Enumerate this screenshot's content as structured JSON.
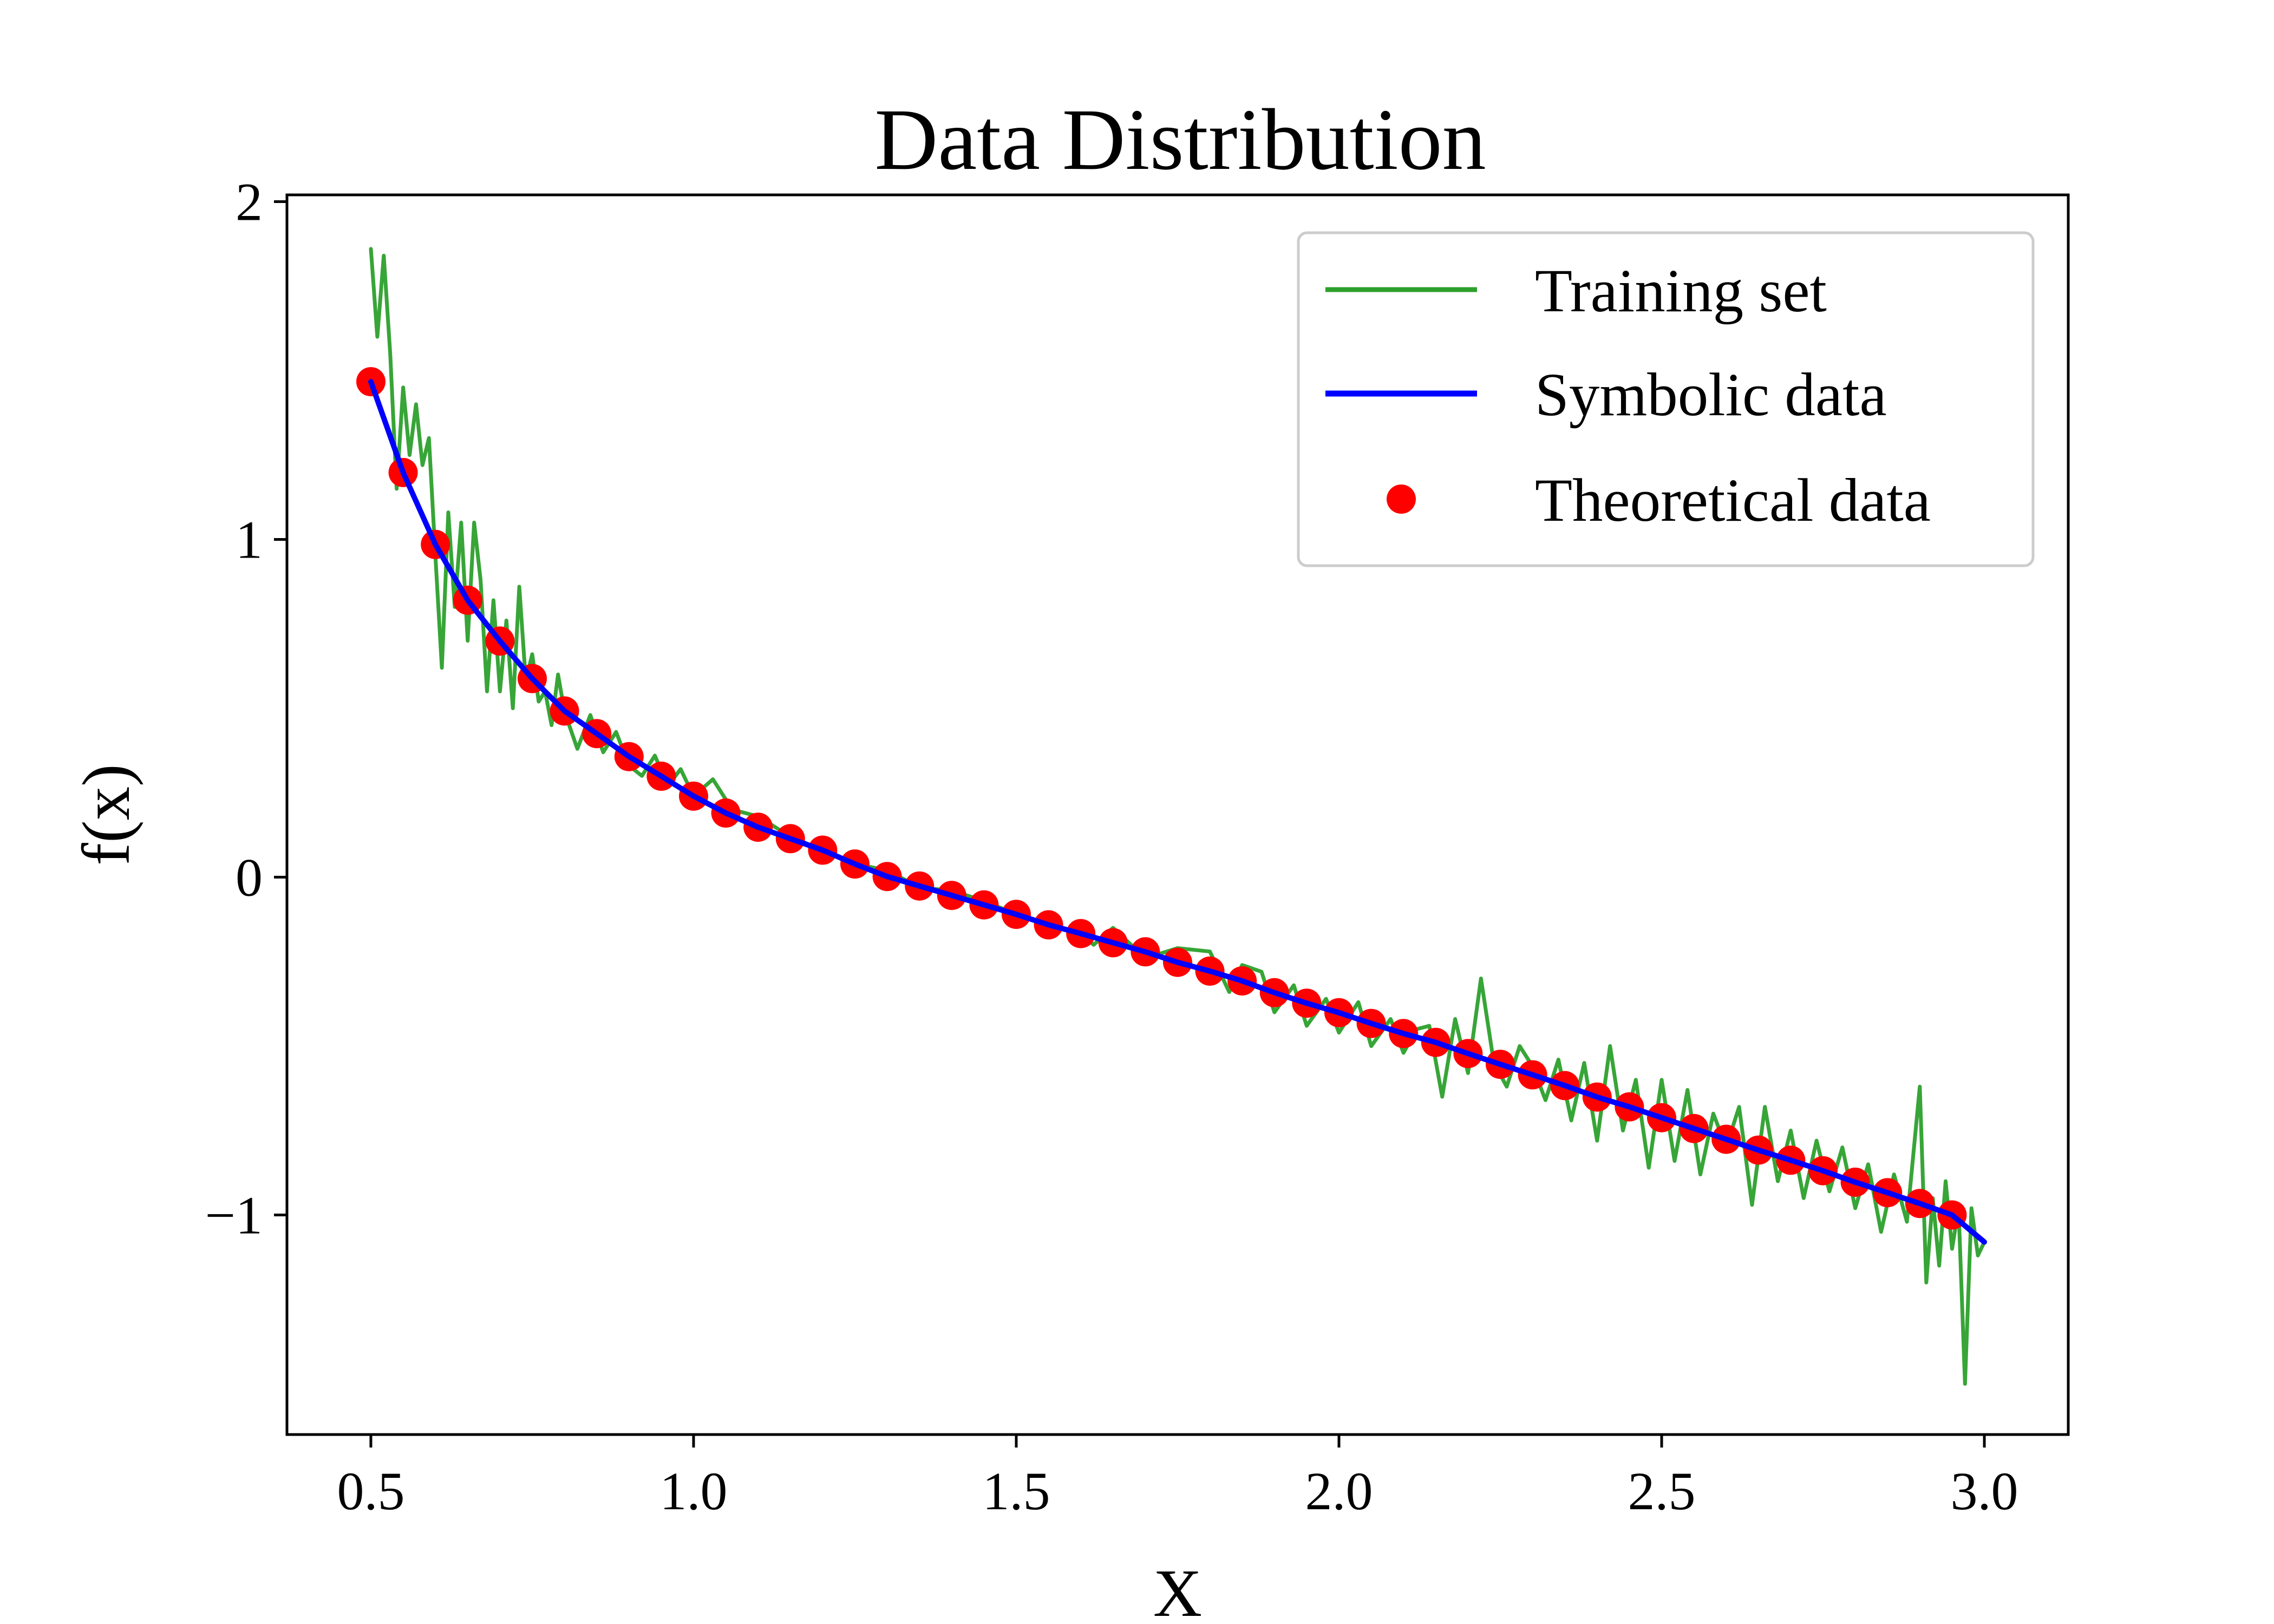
{
  "chart_data": {
    "type": "line",
    "title": "Data Distribution",
    "xlabel": "X",
    "ylabel": "f(x)",
    "xlim": [
      0.37,
      3.13
    ],
    "ylim": [
      -1.65,
      2.02
    ],
    "grid": false,
    "legend_position": "top-right",
    "x_ticks": [
      {
        "value": 0.5,
        "label": "0.5"
      },
      {
        "value": 1.0,
        "label": "1.0"
      },
      {
        "value": 1.5,
        "label": "1.5"
      },
      {
        "value": 2.0,
        "label": "2.0"
      },
      {
        "value": 2.5,
        "label": "2.5"
      },
      {
        "value": 3.0,
        "label": "3.0"
      }
    ],
    "y_ticks": [
      {
        "value": -1,
        "label": "−1"
      },
      {
        "value": 0,
        "label": "0"
      },
      {
        "value": 1,
        "label": "1"
      },
      {
        "value": 2,
        "label": "2"
      }
    ],
    "series": [
      {
        "name": "Training set",
        "kind": "line",
        "color": "#2ca02c",
        "x": [
          0.5,
          0.51,
          0.52,
          0.53,
          0.54,
          0.55,
          0.56,
          0.57,
          0.58,
          0.59,
          0.6,
          0.61,
          0.62,
          0.63,
          0.64,
          0.65,
          0.66,
          0.67,
          0.68,
          0.69,
          0.7,
          0.71,
          0.72,
          0.73,
          0.74,
          0.75,
          0.76,
          0.77,
          0.78,
          0.79,
          0.8,
          0.82,
          0.84,
          0.86,
          0.88,
          0.9,
          0.92,
          0.94,
          0.96,
          0.98,
          1.0,
          1.03,
          1.06,
          1.1,
          1.15,
          1.2,
          1.25,
          1.3,
          1.35,
          1.4,
          1.45,
          1.5,
          1.55,
          1.6,
          1.62,
          1.65,
          1.7,
          1.75,
          1.8,
          1.83,
          1.85,
          1.88,
          1.9,
          1.93,
          1.95,
          1.98,
          2.0,
          2.03,
          2.05,
          2.08,
          2.1,
          2.12,
          2.14,
          2.16,
          2.18,
          2.2,
          2.22,
          2.24,
          2.26,
          2.28,
          2.3,
          2.32,
          2.34,
          2.36,
          2.38,
          2.4,
          2.42,
          2.44,
          2.46,
          2.48,
          2.5,
          2.52,
          2.54,
          2.56,
          2.58,
          2.6,
          2.62,
          2.64,
          2.66,
          2.68,
          2.7,
          2.72,
          2.74,
          2.76,
          2.78,
          2.8,
          2.82,
          2.84,
          2.86,
          2.88,
          2.9,
          2.91,
          2.92,
          2.93,
          2.94,
          2.95,
          2.96,
          2.97,
          2.98,
          2.99,
          3.0
        ],
        "y": [
          1.86,
          1.6,
          1.84,
          1.55,
          1.15,
          1.45,
          1.25,
          1.4,
          1.22,
          1.3,
          0.95,
          0.62,
          1.08,
          0.8,
          1.05,
          0.7,
          1.05,
          0.88,
          0.55,
          0.82,
          0.55,
          0.76,
          0.5,
          0.86,
          0.58,
          0.66,
          0.52,
          0.55,
          0.45,
          0.6,
          0.49,
          0.38,
          0.48,
          0.37,
          0.43,
          0.33,
          0.3,
          0.36,
          0.27,
          0.32,
          0.24,
          0.29,
          0.2,
          0.18,
          0.12,
          0.08,
          0.04,
          0.02,
          -0.03,
          -0.04,
          -0.07,
          -0.11,
          -0.14,
          -0.17,
          -0.2,
          -0.15,
          -0.24,
          -0.21,
          -0.22,
          -0.34,
          -0.26,
          -0.28,
          -0.4,
          -0.32,
          -0.44,
          -0.36,
          -0.46,
          -0.37,
          -0.5,
          -0.42,
          -0.52,
          -0.45,
          -0.44,
          -0.65,
          -0.42,
          -0.58,
          -0.3,
          -0.55,
          -0.62,
          -0.5,
          -0.56,
          -0.66,
          -0.54,
          -0.72,
          -0.55,
          -0.78,
          -0.5,
          -0.75,
          -0.6,
          -0.86,
          -0.6,
          -0.84,
          -0.63,
          -0.88,
          -0.7,
          -0.8,
          -0.68,
          -0.97,
          -0.68,
          -0.9,
          -0.75,
          -0.95,
          -0.78,
          -0.93,
          -0.8,
          -0.98,
          -0.85,
          -1.05,
          -0.88,
          -1.02,
          -0.62,
          -1.2,
          -0.95,
          -1.15,
          -0.9,
          -1.1,
          -0.98,
          -1.5,
          -0.98,
          -1.12,
          -1.08
        ]
      },
      {
        "name": "Symbolic data",
        "kind": "line",
        "color": "#0000ff",
        "x": [
          0.5,
          0.55,
          0.6,
          0.65,
          0.7,
          0.75,
          0.8,
          0.85,
          0.9,
          0.95,
          1.0,
          1.05,
          1.1,
          1.15,
          1.2,
          1.25,
          1.3,
          1.35,
          1.4,
          1.45,
          1.5,
          1.55,
          1.6,
          1.65,
          1.7,
          1.75,
          1.8,
          1.85,
          1.9,
          1.95,
          2.0,
          2.05,
          2.1,
          2.15,
          2.2,
          2.25,
          2.3,
          2.35,
          2.4,
          2.45,
          2.5,
          2.55,
          2.6,
          2.65,
          2.7,
          2.75,
          2.8,
          2.85,
          2.9,
          2.95,
          3.0
        ],
        "y": [
          1.467,
          1.198,
          0.985,
          0.82,
          0.699,
          0.588,
          0.492,
          0.425,
          0.357,
          0.299,
          0.24,
          0.19,
          0.148,
          0.114,
          0.08,
          0.039,
          0.002,
          -0.026,
          -0.054,
          -0.082,
          -0.11,
          -0.141,
          -0.167,
          -0.194,
          -0.221,
          -0.252,
          -0.278,
          -0.307,
          -0.342,
          -0.373,
          -0.401,
          -0.433,
          -0.463,
          -0.489,
          -0.522,
          -0.554,
          -0.585,
          -0.617,
          -0.651,
          -0.68,
          -0.712,
          -0.744,
          -0.776,
          -0.808,
          -0.838,
          -0.869,
          -0.903,
          -0.934,
          -0.966,
          -1.0,
          -1.08
        ]
      },
      {
        "name": "Theoretical data",
        "kind": "scatter",
        "color": "#ff0000",
        "x": [
          0.5,
          0.55,
          0.6,
          0.65,
          0.7,
          0.75,
          0.8,
          0.85,
          0.9,
          0.95,
          1.0,
          1.05,
          1.1,
          1.15,
          1.2,
          1.25,
          1.3,
          1.35,
          1.4,
          1.45,
          1.5,
          1.55,
          1.6,
          1.65,
          1.7,
          1.75,
          1.8,
          1.85,
          1.9,
          1.95,
          2.0,
          2.05,
          2.1,
          2.15,
          2.2,
          2.25,
          2.3,
          2.35,
          2.4,
          2.45,
          2.5,
          2.55,
          2.6,
          2.65,
          2.7,
          2.75,
          2.8,
          2.85,
          2.9,
          2.95
        ],
        "y": [
          1.467,
          1.198,
          0.985,
          0.82,
          0.699,
          0.588,
          0.492,
          0.425,
          0.357,
          0.299,
          0.24,
          0.19,
          0.148,
          0.114,
          0.08,
          0.039,
          0.002,
          -0.026,
          -0.054,
          -0.082,
          -0.11,
          -0.141,
          -0.167,
          -0.194,
          -0.221,
          -0.252,
          -0.278,
          -0.307,
          -0.342,
          -0.373,
          -0.401,
          -0.433,
          -0.463,
          -0.489,
          -0.522,
          -0.554,
          -0.585,
          -0.617,
          -0.651,
          -0.68,
          -0.712,
          -0.744,
          -0.776,
          -0.808,
          -0.838,
          -0.869,
          -0.903,
          -0.934,
          -0.966,
          -1.0
        ]
      }
    ]
  }
}
